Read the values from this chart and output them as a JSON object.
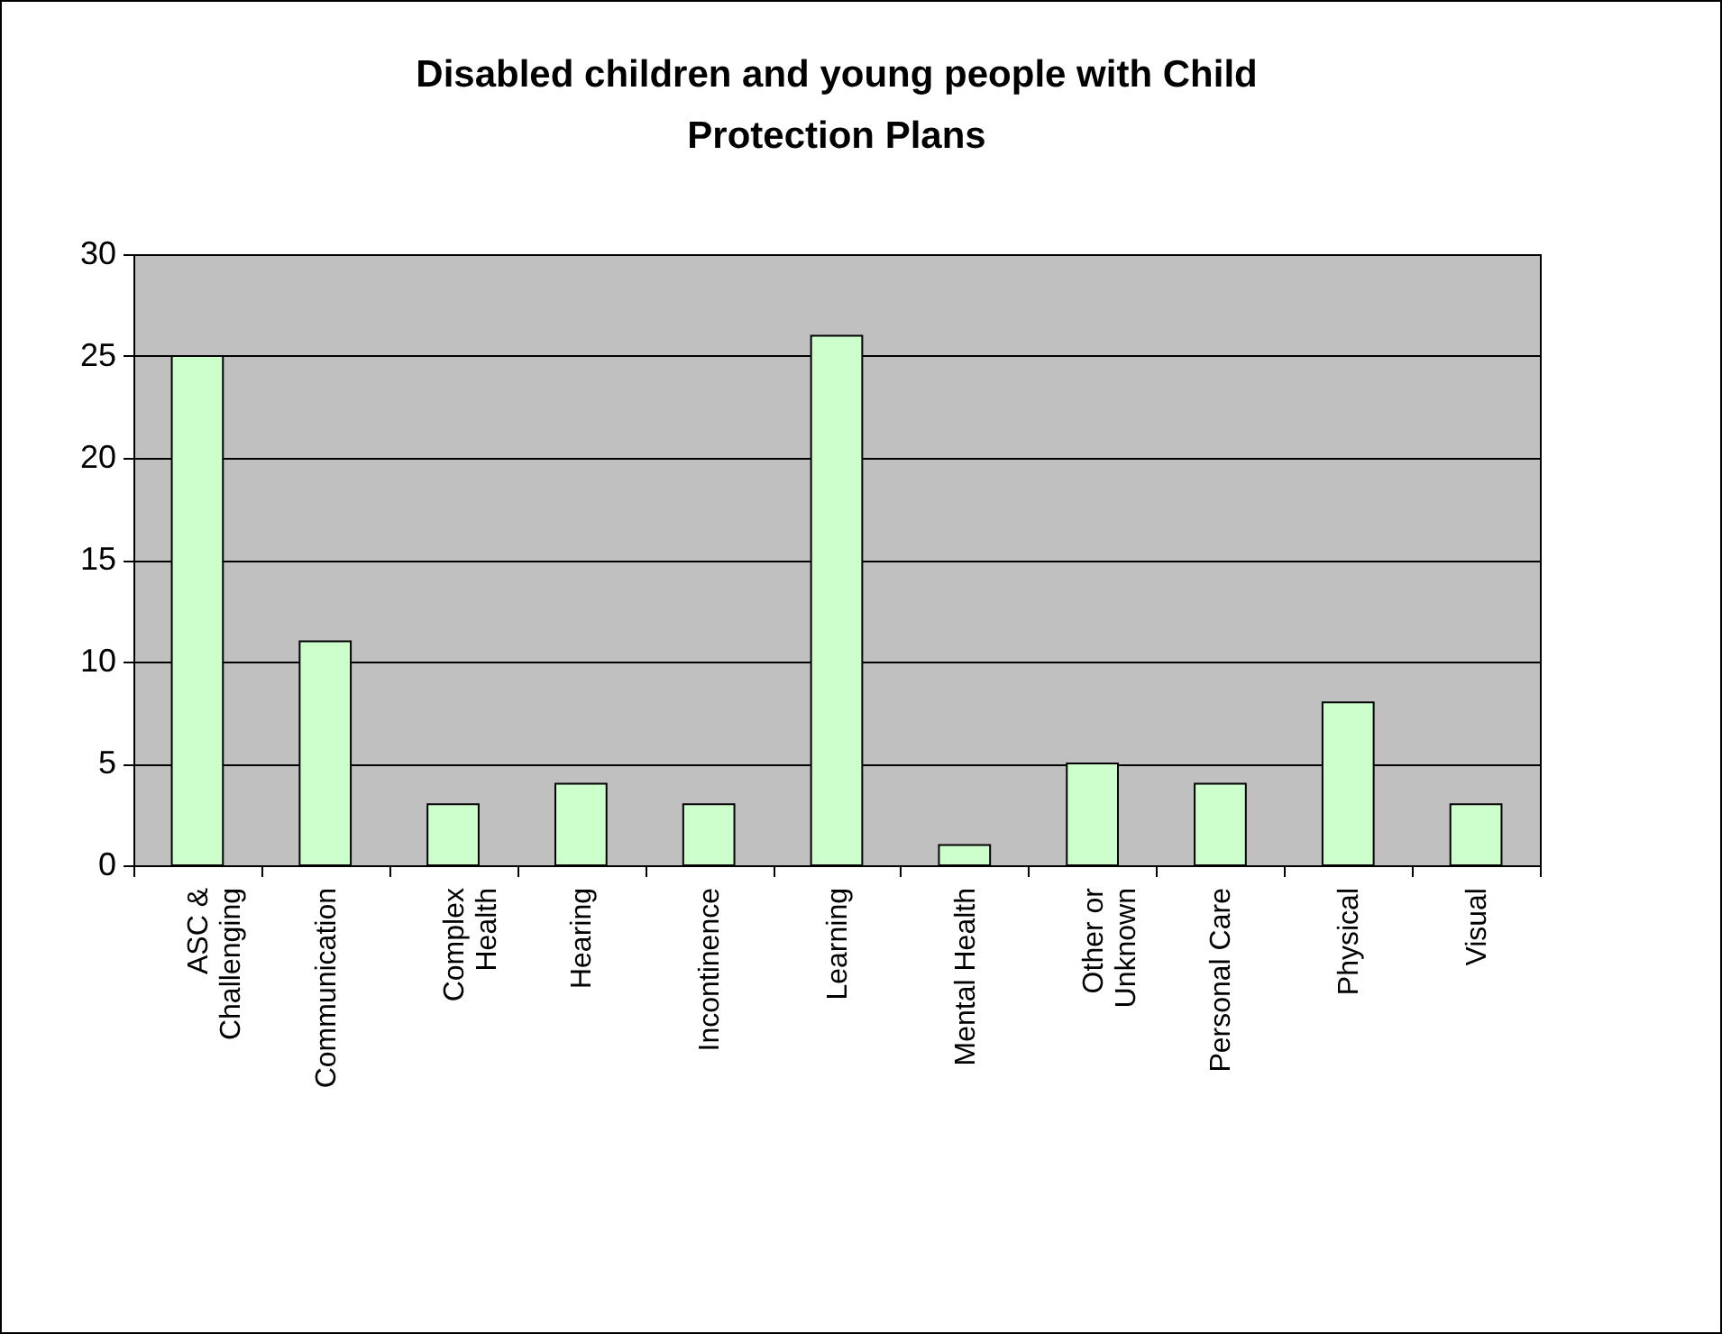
{
  "chart_data": {
    "type": "bar",
    "title": "Disabled children and young people with Child\nProtection Plans",
    "categories": [
      "ASC &\nChallenging",
      "Communication",
      "Complex\nHealth",
      "Hearing",
      "Incontinence",
      "Learning",
      "Mental Health",
      "Other or\nUnknown",
      "Personal Care",
      "Physical",
      "Visual"
    ],
    "values": [
      25,
      11,
      3,
      4,
      3,
      26,
      1,
      5,
      4,
      8,
      3
    ],
    "color": "#ccffcc",
    "ylim": [
      0,
      30
    ],
    "yticks": [
      0,
      5,
      10,
      15,
      20,
      25,
      30
    ],
    "grid": "y"
  }
}
